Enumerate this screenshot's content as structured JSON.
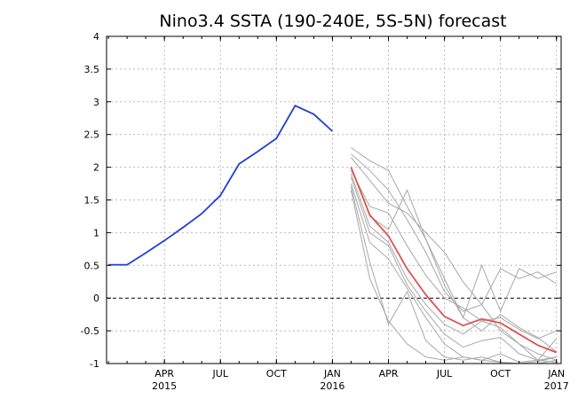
{
  "chart_data": {
    "type": "line",
    "title": "Nino3.4 SSTA (190-240E, 5S-5N) forecast",
    "xlabel": "",
    "ylabel": "",
    "ylim": [
      -1,
      4
    ],
    "yticks": [
      "4",
      "3.5",
      "3",
      "2.5",
      "2",
      "1.5",
      "1",
      "0.5",
      "0",
      "-0.5",
      "-1"
    ],
    "yticks_values": [
      4,
      3.5,
      3,
      2.5,
      2,
      1.5,
      1,
      0.5,
      0,
      -0.5,
      -1
    ],
    "xlim": [
      "2015-01",
      "2017-01"
    ],
    "xticks": [
      {
        "at": "2015-04",
        "month": "APR",
        "year": "2015"
      },
      {
        "at": "2015-07",
        "month": "JUL",
        "year": ""
      },
      {
        "at": "2015-10",
        "month": "OCT",
        "year": ""
      },
      {
        "at": "2016-01",
        "month": "JAN",
        "year": "2016"
      },
      {
        "at": "2016-04",
        "month": "APR",
        "year": ""
      },
      {
        "at": "2016-07",
        "month": "JUL",
        "year": ""
      },
      {
        "at": "2016-10",
        "month": "OCT",
        "year": ""
      },
      {
        "at": "2017-01",
        "month": "JAN",
        "year": "2017"
      }
    ],
    "grid": true,
    "zero_line": true,
    "colors": {
      "observed": "#1f3fd0",
      "ensemble_mean": "#e05050",
      "members": "#a8a8a8",
      "frame": "#000000"
    },
    "observed": {
      "x": [
        "2015-01",
        "2015-02",
        "2015-03",
        "2015-04",
        "2015-05",
        "2015-06",
        "2015-07",
        "2015-08",
        "2015-09",
        "2015-10",
        "2015-11",
        "2015-12",
        "2016-01"
      ],
      "y": [
        0.51,
        0.51,
        0.69,
        0.88,
        1.08,
        1.29,
        1.57,
        2.05,
        2.24,
        2.44,
        2.94,
        2.81,
        2.55
      ]
    },
    "ensemble_mean": {
      "x": [
        "2016-02",
        "2016-03",
        "2016-04",
        "2016-05",
        "2016-06",
        "2016-07",
        "2016-08",
        "2016-09",
        "2016-10",
        "2016-11",
        "2016-12",
        "2017-01"
      ],
      "y": [
        2.0,
        1.27,
        0.95,
        0.45,
        0.05,
        -0.28,
        -0.42,
        -0.32,
        -0.38,
        -0.55,
        -0.72,
        -0.83
      ]
    },
    "ensemble_members": [
      {
        "x": [
          "2016-02",
          "2016-03",
          "2016-04",
          "2016-05",
          "2016-06",
          "2016-07",
          "2016-08",
          "2016-09",
          "2016-10",
          "2016-11",
          "2016-12",
          "2017-01"
        ],
        "y": [
          2.3,
          2.1,
          1.95,
          1.4,
          0.9,
          0.2,
          -0.3,
          0.5,
          -0.2,
          0.45,
          0.3,
          0.4
        ]
      },
      {
        "x": [
          "2016-02",
          "2016-03",
          "2016-04",
          "2016-05",
          "2016-06",
          "2016-07",
          "2016-08",
          "2016-09",
          "2016-10",
          "2016-11",
          "2016-12",
          "2017-01"
        ],
        "y": [
          2.2,
          1.95,
          1.65,
          1.2,
          0.7,
          0.1,
          -0.2,
          -0.1,
          0.45,
          0.3,
          0.4,
          0.22
        ]
      },
      {
        "x": [
          "2016-02",
          "2016-03",
          "2016-04",
          "2016-05",
          "2016-06",
          "2016-07",
          "2016-08",
          "2016-09",
          "2016-10",
          "2016-11",
          "2016-12",
          "2017-01"
        ],
        "y": [
          2.15,
          1.8,
          1.45,
          1.3,
          1.0,
          0.7,
          0.25,
          -0.1,
          -0.5,
          -0.7,
          -0.85,
          -0.95
        ]
      },
      {
        "x": [
          "2016-02",
          "2016-03",
          "2016-04",
          "2016-05",
          "2016-06",
          "2016-07",
          "2016-08",
          "2016-09",
          "2016-10",
          "2016-11",
          "2016-12",
          "2017-01"
        ],
        "y": [
          2.0,
          1.25,
          1.05,
          1.65,
          0.9,
          0.3,
          -0.3,
          -0.5,
          -0.25,
          -0.45,
          -0.6,
          -0.82
        ]
      },
      {
        "x": [
          "2016-02",
          "2016-03",
          "2016-04",
          "2016-05",
          "2016-06",
          "2016-07",
          "2016-08",
          "2016-09",
          "2016-10",
          "2016-11",
          "2016-12",
          "2017-01"
        ],
        "y": [
          1.95,
          1.4,
          1.3,
          0.8,
          0.35,
          0.0,
          -0.15,
          -0.35,
          -0.45,
          -0.7,
          -0.95,
          -0.9
        ]
      },
      {
        "x": [
          "2016-02",
          "2016-03",
          "2016-04",
          "2016-05",
          "2016-06",
          "2016-07",
          "2016-08",
          "2016-09",
          "2016-10",
          "2016-11",
          "2016-12",
          "2017-01"
        ],
        "y": [
          1.85,
          1.0,
          0.8,
          0.2,
          -0.2,
          -0.55,
          -0.75,
          -0.65,
          -0.6,
          -0.85,
          -0.95,
          -0.98
        ]
      },
      {
        "x": [
          "2016-02",
          "2016-03",
          "2016-04",
          "2016-05",
          "2016-06",
          "2016-07",
          "2016-08",
          "2016-09",
          "2016-10",
          "2016-11",
          "2016-12",
          "2017-01"
        ],
        "y": [
          1.75,
          0.85,
          0.6,
          0.15,
          -0.3,
          -0.7,
          -0.9,
          -0.95,
          -0.98,
          -1.0,
          -1.0,
          -0.95
        ]
      },
      {
        "x": [
          "2016-02",
          "2016-03",
          "2016-04",
          "2016-05",
          "2016-06",
          "2016-07",
          "2016-08",
          "2016-09",
          "2016-10",
          "2016-11",
          "2016-12",
          "2017-01"
        ],
        "y": [
          1.7,
          0.55,
          -0.4,
          0.1,
          -0.65,
          -0.9,
          -0.95,
          -0.9,
          -0.98,
          -1.0,
          -0.97,
          -0.9
        ]
      },
      {
        "x": [
          "2016-02",
          "2016-03",
          "2016-04",
          "2016-05",
          "2016-06",
          "2016-07",
          "2016-08",
          "2016-09",
          "2016-10",
          "2016-11",
          "2016-12",
          "2017-01"
        ],
        "y": [
          1.65,
          0.3,
          -0.35,
          -0.7,
          -0.9,
          -0.95,
          -0.9,
          -0.95,
          -0.85,
          -0.98,
          -0.95,
          -0.62
        ]
      },
      {
        "x": [
          "2016-02",
          "2016-03",
          "2016-04",
          "2016-05",
          "2016-06",
          "2016-07",
          "2016-08",
          "2016-09",
          "2016-10",
          "2016-11",
          "2016-12",
          "2017-01"
        ],
        "y": [
          1.9,
          1.1,
          0.85,
          0.3,
          -0.1,
          -0.4,
          -0.55,
          -0.35,
          -0.3,
          -0.48,
          -0.62,
          -0.5
        ]
      }
    ]
  }
}
